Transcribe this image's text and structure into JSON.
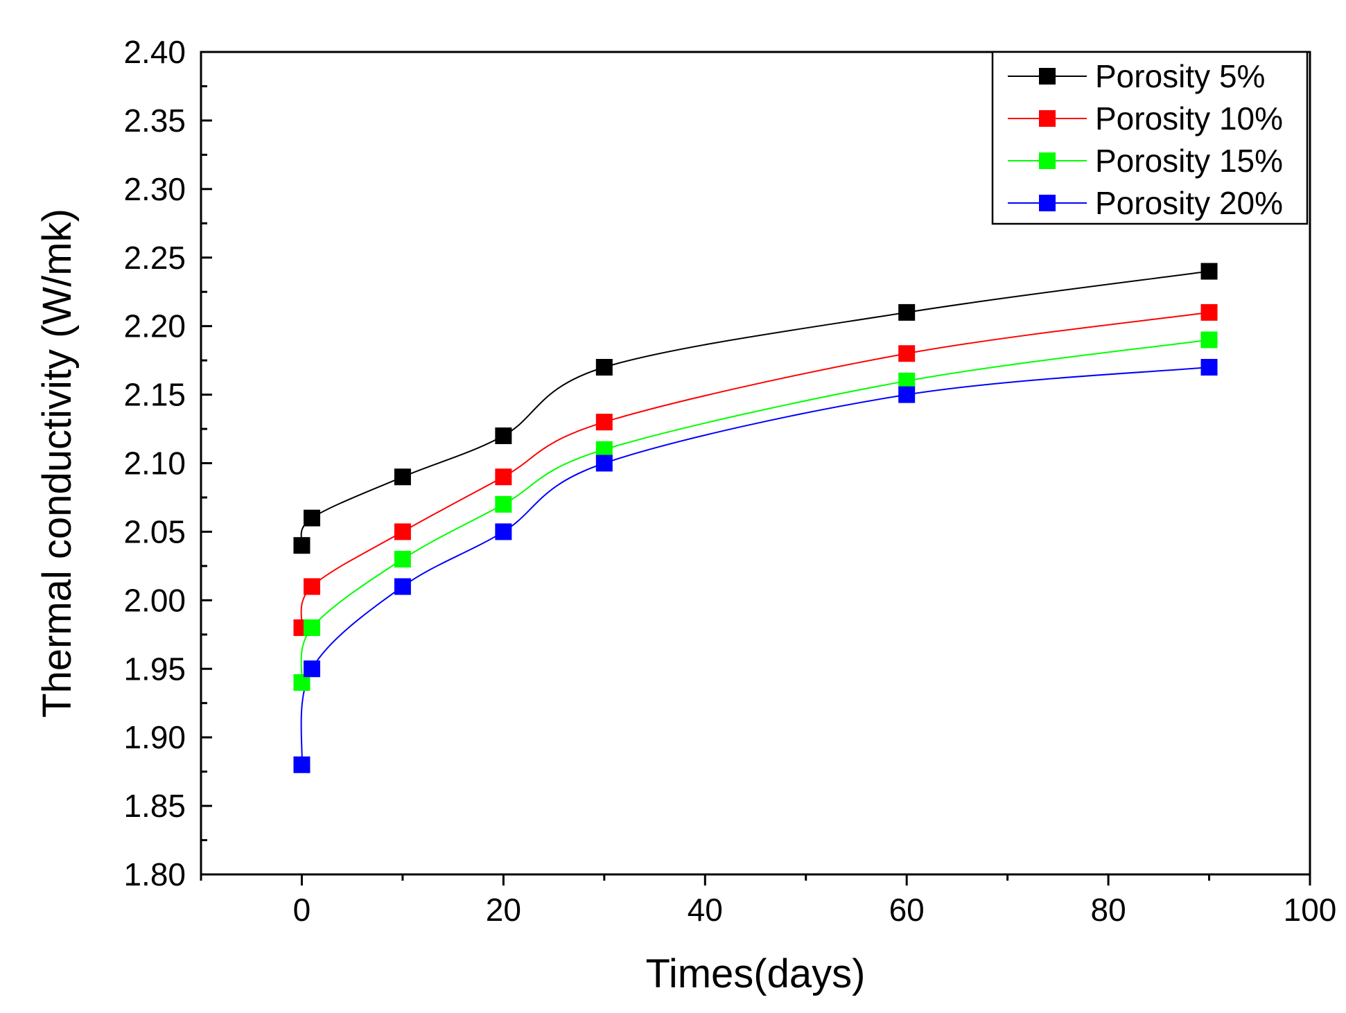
{
  "chart_data": {
    "type": "line",
    "title": "",
    "xlabel": "Times(days)",
    "ylabel": "Thermal conductivity (W/mk)",
    "xlim": [
      -10,
      100
    ],
    "ylim": [
      1.8,
      2.4
    ],
    "x_ticks": [
      0,
      20,
      40,
      60,
      80,
      100
    ],
    "x_tick_labels": [
      "0",
      "20",
      "40",
      "60",
      "80",
      "100"
    ],
    "y_ticks": [
      1.8,
      1.85,
      1.9,
      1.95,
      2.0,
      2.05,
      2.1,
      2.15,
      2.2,
      2.25,
      2.3,
      2.35,
      2.4
    ],
    "y_tick_labels": [
      "1.80",
      "1.85",
      "1.90",
      "1.95",
      "2.00",
      "2.05",
      "2.10",
      "2.15",
      "2.20",
      "2.25",
      "2.30",
      "2.35",
      "2.40"
    ],
    "grid": false,
    "legend_position": "top-right",
    "marker": "square",
    "line_style": "smoothed",
    "series": [
      {
        "name": "Porosity 5%",
        "color": "#000000",
        "x": [
          0,
          1,
          10,
          20,
          30,
          60,
          90
        ],
        "y": [
          2.04,
          2.06,
          2.09,
          2.12,
          2.17,
          2.21,
          2.24
        ]
      },
      {
        "name": "Porosity 10%",
        "color": "#ff0000",
        "x": [
          0,
          1,
          10,
          20,
          30,
          60,
          90
        ],
        "y": [
          1.98,
          2.01,
          2.05,
          2.09,
          2.13,
          2.18,
          2.21
        ]
      },
      {
        "name": "Porosity 15%",
        "color": "#00ff00",
        "x": [
          0,
          1,
          10,
          20,
          30,
          60,
          90
        ],
        "y": [
          1.94,
          1.98,
          2.03,
          2.07,
          2.11,
          2.16,
          2.19
        ]
      },
      {
        "name": "Porosity 20%",
        "color": "#0000ff",
        "x": [
          0,
          1,
          10,
          20,
          30,
          60,
          90
        ],
        "y": [
          1.88,
          1.95,
          2.01,
          2.05,
          2.1,
          2.15,
          2.17
        ]
      }
    ]
  }
}
